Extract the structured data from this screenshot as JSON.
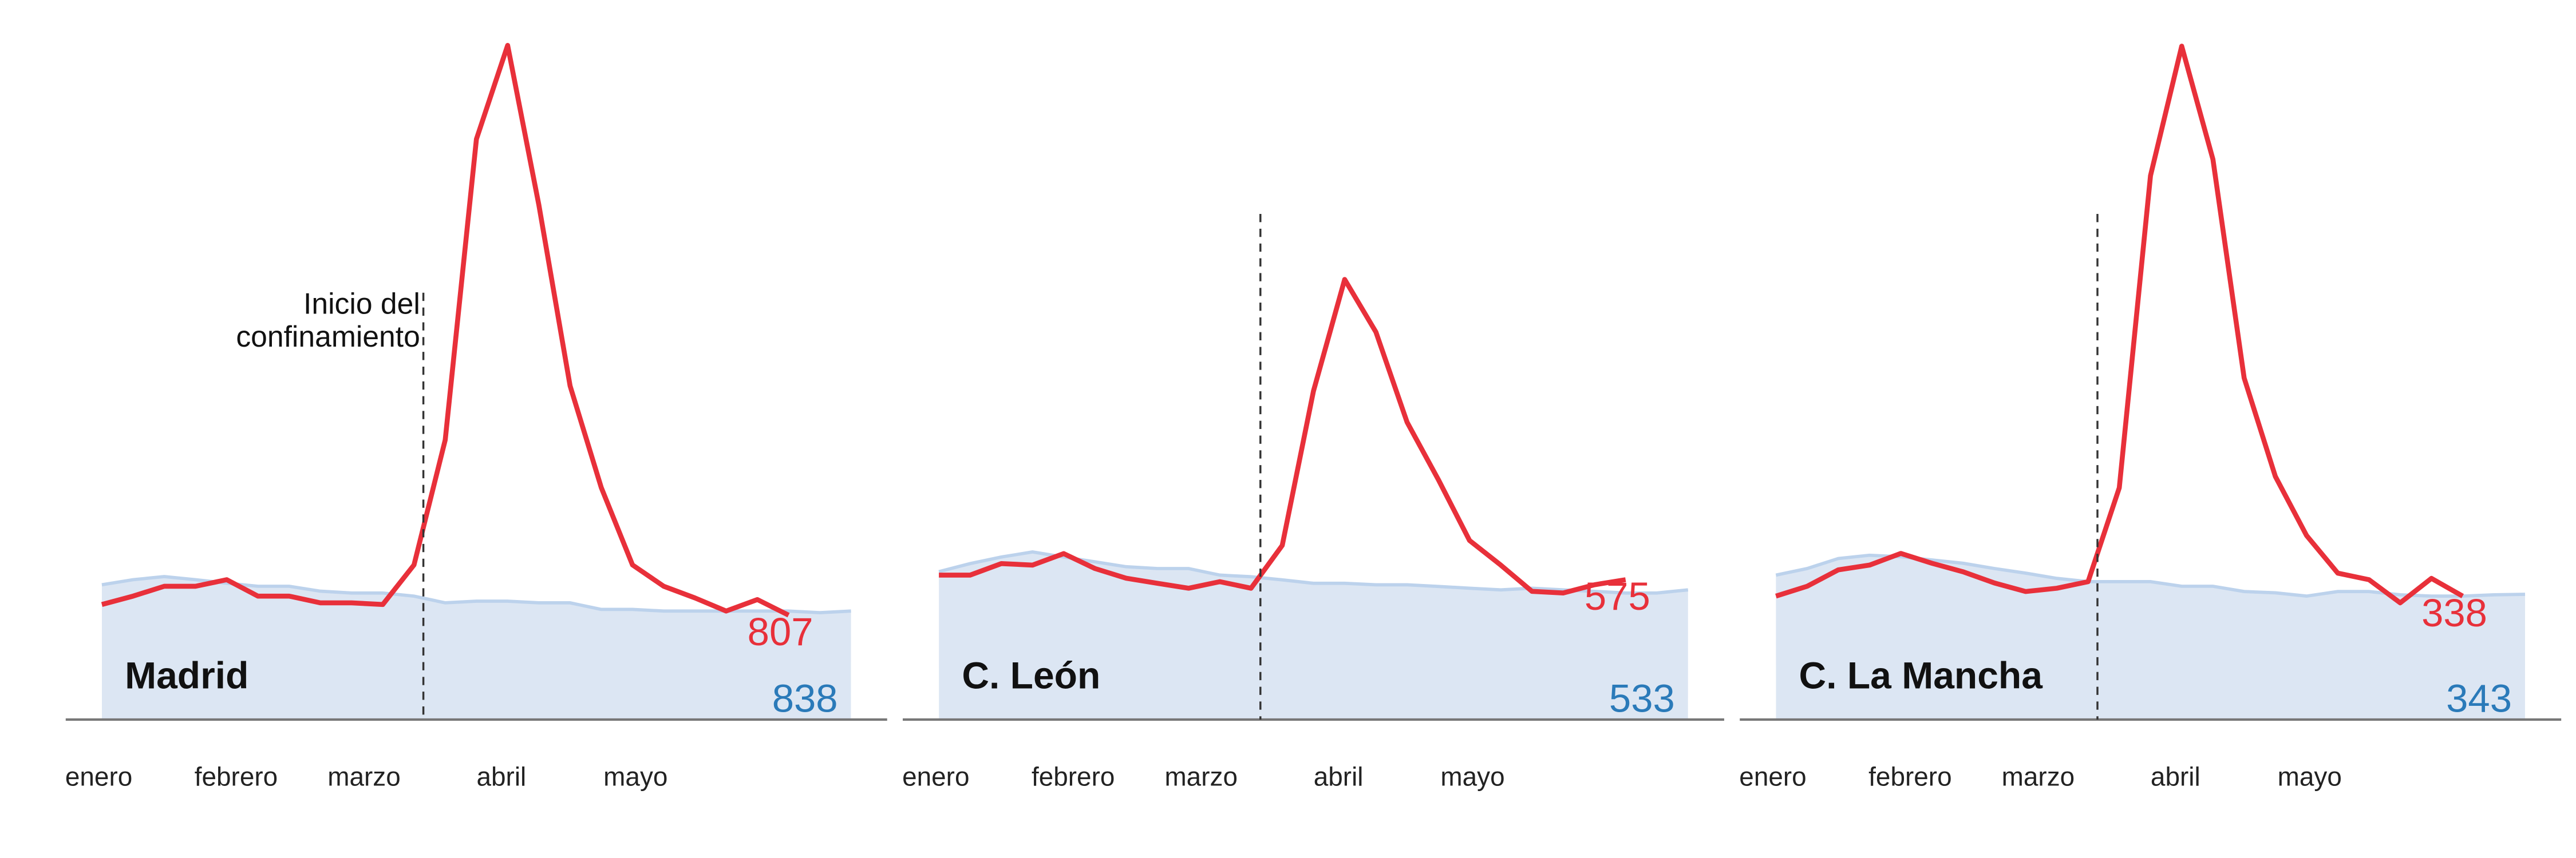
{
  "chart_data": [
    {
      "type": "line",
      "title": "Madrid",
      "x": [
        1,
        2,
        3,
        4,
        5,
        6,
        7,
        8,
        9,
        10,
        11,
        12,
        13,
        14,
        15,
        16,
        17,
        18,
        19,
        20,
        21,
        22,
        23,
        24,
        25
      ],
      "xlim": [
        -0.16,
        26.16
      ],
      "xticks": [
        {
          "value": 0.9,
          "label": "enero"
        },
        {
          "value": 5.3,
          "label": "febrero"
        },
        {
          "value": 9.4,
          "label": "marzo"
        },
        {
          "value": 13.8,
          "label": "abril"
        },
        {
          "value": 18.1,
          "label": "mayo"
        }
      ],
      "ylim": [
        0,
        5300
      ],
      "marker_x": 11.3,
      "annotation": [
        "Inicio del",
        "confinamiento"
      ],
      "series": [
        {
          "kind": "area",
          "color": "#2a7ab9",
          "values": [
            1041,
            1080,
            1105,
            1080,
            1054,
            1029,
            1029,
            991,
            978,
            978,
            953,
            902,
            914,
            914,
            902,
            902,
            851,
            851,
            838,
            838,
            838,
            838,
            838,
            826,
            838
          ]
        },
        {
          "kind": "line",
          "color": "#e8303a",
          "values": [
            889,
            953,
            1029,
            1029,
            1080,
            953,
            953,
            902,
            902,
            889,
            1194,
            2159,
            4483,
            5207,
            3975,
            2578,
            1791,
            1194,
            1029,
            940,
            838,
            927,
            807,
            null,
            null
          ]
        }
      ]
    },
    {
      "type": "line",
      "title": "C. León",
      "x": [
        1,
        2,
        3,
        4,
        5,
        6,
        7,
        8,
        9,
        10,
        11,
        12,
        13,
        14,
        15,
        16,
        17,
        18,
        19,
        20,
        21,
        22,
        23,
        24,
        25
      ],
      "xlim": [
        -0.16,
        26.16
      ],
      "xticks": [
        {
          "value": 0.9,
          "label": "enero"
        },
        {
          "value": 5.3,
          "label": "febrero"
        },
        {
          "value": 9.4,
          "label": "marzo"
        },
        {
          "value": 13.8,
          "label": "abril"
        },
        {
          "value": 18.1,
          "label": "mayo"
        }
      ],
      "ylim": [
        0,
        2820
      ],
      "marker_x": 11.3,
      "series": [
        {
          "kind": "area",
          "color": "#2a7ab9",
          "values": [
            608,
            641,
            668,
            689,
            668,
            648,
            628,
            621,
            621,
            594,
            587,
            574,
            560,
            560,
            554,
            554,
            547,
            540,
            533,
            540,
            533,
            527,
            520,
            520,
            533
          ]
        },
        {
          "kind": "line",
          "color": "#e8303a",
          "values": [
            594,
            594,
            641,
            635,
            682,
            621,
            581,
            560,
            540,
            567,
            540,
            716,
            1350,
            1809,
            1593,
            1222,
            986,
            736,
            635,
            527,
            520,
            554,
            575,
            null,
            null
          ]
        }
      ]
    },
    {
      "type": "line",
      "title": "C. La Mancha",
      "x": [
        1,
        2,
        3,
        4,
        5,
        6,
        7,
        8,
        9,
        10,
        11,
        12,
        13,
        14,
        15,
        16,
        17,
        18,
        19,
        20,
        21,
        22,
        23,
        24,
        25
      ],
      "xlim": [
        -0.16,
        26.16
      ],
      "xticks": [
        {
          "value": 0.9,
          "label": "enero"
        },
        {
          "value": 5.3,
          "label": "febrero"
        },
        {
          "value": 9.4,
          "label": "marzo"
        },
        {
          "value": 13.8,
          "label": "abril"
        },
        {
          "value": 18.1,
          "label": "mayo"
        }
      ],
      "ylim": [
        0,
        1880
      ],
      "marker_x": 11.3,
      "series": [
        {
          "kind": "area",
          "color": "#2a7ab9",
          "values": [
            396,
            414,
            441,
            450,
            446,
            437,
            428,
            414,
            401,
            387,
            378,
            378,
            378,
            365,
            365,
            351,
            347,
            338,
            351,
            351,
            342,
            338,
            338,
            342,
            343
          ]
        },
        {
          "kind": "line",
          "color": "#e8303a",
          "values": [
            338,
            365,
            410,
            423,
            455,
            428,
            405,
            374,
            351,
            360,
            378,
            635,
            1490,
            1845,
            1535,
            936,
            666,
            504,
            401,
            383,
            320,
            387,
            338,
            null,
            null
          ]
        }
      ]
    }
  ]
}
